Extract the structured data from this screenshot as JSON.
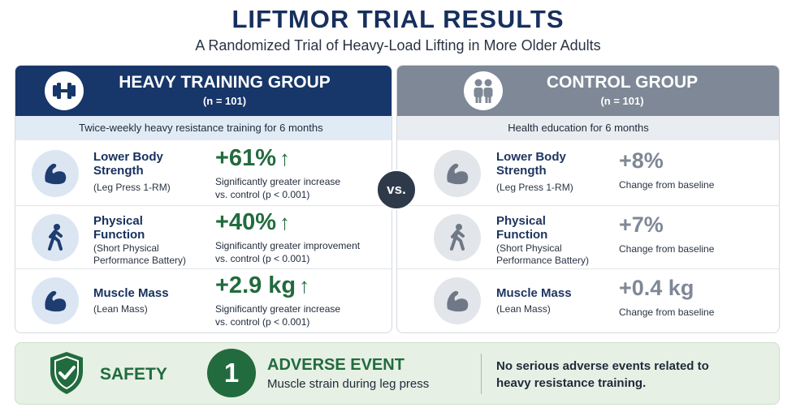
{
  "title": "LIFTMOR TRIAL RESULTS",
  "subtitle": "A Randomized Trial of Heavy-Load Lifting in More Older Adults",
  "vs_label": "vs.",
  "heavy": {
    "title": "HEAVY TRAINING GROUP",
    "n": "(n = 101)",
    "description": "Twice-weekly heavy resistance training for 6 months",
    "icon": "dumbbell-icon",
    "metrics": [
      {
        "label_line1": "Lower Body",
        "label_line2": "Strength",
        "sub": "(Leg Press 1-RM)",
        "value": "+61%",
        "arrow": "↑",
        "note_line1": "Significantly greater increase",
        "note_line2": "vs. control (p < 0.001)",
        "icon": "flexed-arm-icon"
      },
      {
        "label_line1": "Physical",
        "label_line2": "Function",
        "sub_line1": "(Short Physical",
        "sub_line2": "Performance Battery)",
        "value": "+40%",
        "arrow": "↑",
        "note_line1": "Significantly greater improvement",
        "note_line2": "vs. control (p < 0.001)",
        "icon": "walking-person-icon"
      },
      {
        "label": "Muscle Mass",
        "sub": "(Lean Mass)",
        "value": "+2.9 kg",
        "arrow": "↑",
        "note_line1": "Significantly greater increase",
        "note_line2": "vs. control (p < 0.001)",
        "icon": "flexed-arm-icon"
      }
    ]
  },
  "control": {
    "title": "CONTROL GROUP",
    "n": "(n = 101)",
    "description": "Health education for 6 months",
    "icon": "two-people-icon",
    "metrics": [
      {
        "label_line1": "Lower Body",
        "label_line2": "Strength",
        "sub": "(Leg Press 1-RM)",
        "value": "+8%",
        "note": "Change from baseline",
        "icon": "flexed-arm-icon"
      },
      {
        "label_line1": "Physical",
        "label_line2": "Function",
        "sub_line1": "(Short Physical",
        "sub_line2": "Performance Battery)",
        "value": "+7%",
        "note": "Change from baseline",
        "icon": "walking-person-icon"
      },
      {
        "label": "Muscle Mass",
        "sub": "(Lean Mass)",
        "value": "+0.4 kg",
        "note": "Change from baseline",
        "icon": "flexed-arm-icon"
      }
    ]
  },
  "safety": {
    "label": "SAFETY",
    "count": "1",
    "event_title": "ADVERSE EVENT",
    "event_desc": "Muscle strain during leg press",
    "note_line1": "No serious adverse events related to",
    "note_line2": "heavy resistance training.",
    "icon": "shield-check-icon"
  },
  "colors": {
    "navy": "#173669",
    "gray": "#7e8896",
    "green": "#226b3e",
    "light_green": "#e6f0e4"
  }
}
